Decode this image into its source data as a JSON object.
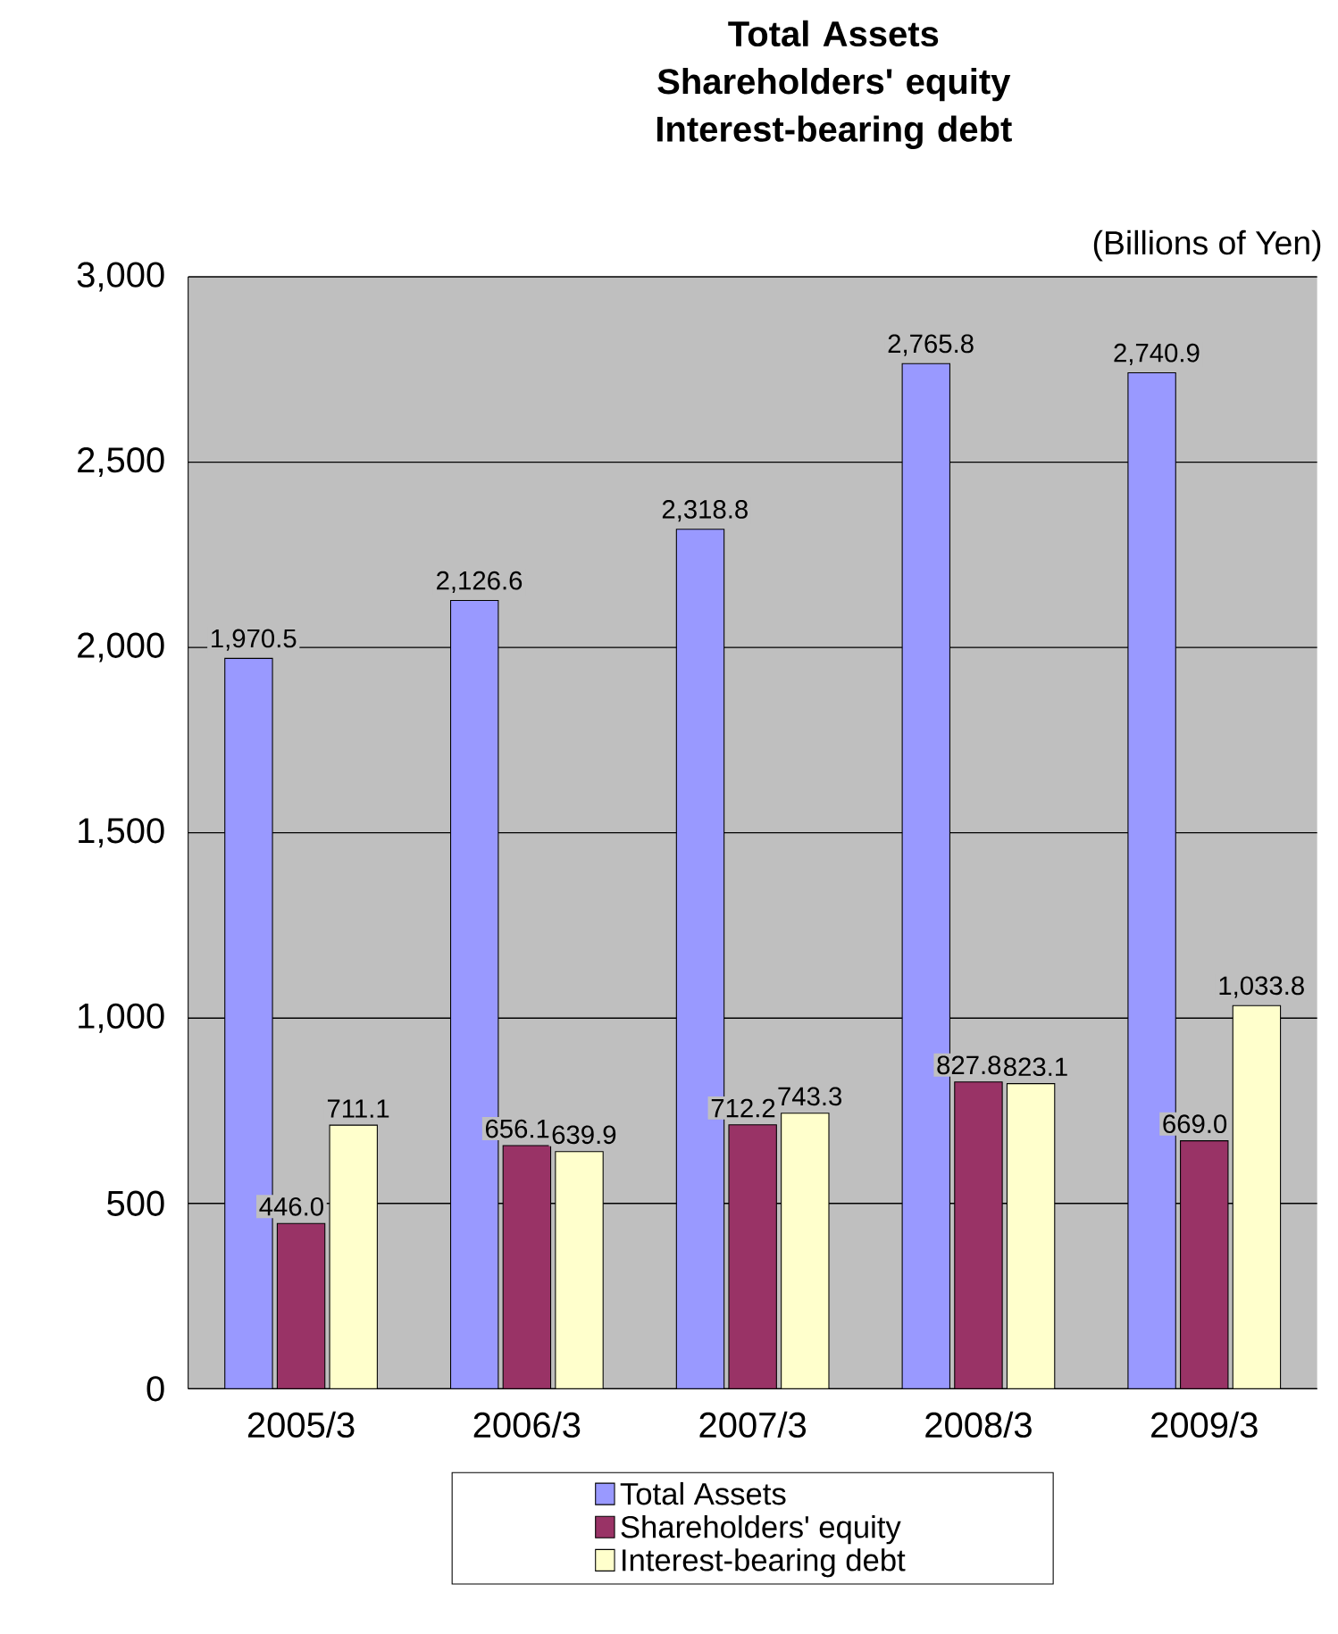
{
  "chart_data": {
    "type": "bar",
    "title": "Total Assets Shareholders' equity Interest-bearing debt",
    "annotations": [
      "(Billions of Yen)"
    ],
    "categories": [
      "2005/3",
      "2006/3",
      "2007/3",
      "2008/3",
      "2009/3"
    ],
    "series": [
      {
        "name": "Total Assets",
        "color": "#9999ff",
        "values": [
          1970.5,
          2126.6,
          2318.8,
          2765.8,
          2740.9
        ],
        "value_labels": [
          "1,970.5",
          "2,126.6",
          "2,318.8",
          "2,765.8",
          "2,740.9"
        ]
      },
      {
        "name": "Shareholders' equity",
        "color": "#993366",
        "values": [
          446.0,
          656.1,
          712.2,
          827.8,
          669.0
        ],
        "value_labels": [
          "446.0",
          "656.1",
          "712.2",
          "827.8",
          "669.0"
        ]
      },
      {
        "name": "Interest-bearing debt",
        "color": "#ffffcc",
        "values": [
          711.1,
          639.9,
          743.3,
          823.1,
          1033.8
        ],
        "value_labels": [
          "711.1",
          "639.9",
          "743.3",
          "823.1",
          "1,033.8"
        ]
      }
    ],
    "ylim": [
      0,
      3000
    ],
    "yticks": [
      0,
      500,
      {
        "value": 1000,
        "label": "1,000"
      },
      {
        "value": 1500,
        "label": "1,500"
      },
      {
        "value": 2000,
        "label": "2,000"
      },
      {
        "value": 2500,
        "label": "2,500"
      },
      {
        "value": 3000,
        "label": "3,000"
      }
    ],
    "grid": "y",
    "legend": "bottom"
  }
}
